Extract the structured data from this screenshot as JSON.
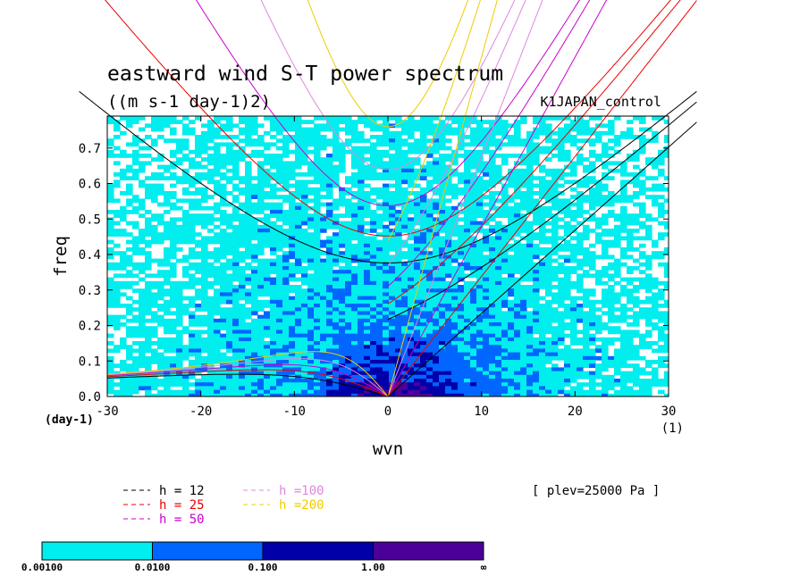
{
  "chart_data": {
    "type": "heatmap",
    "title": "eastward wind S-T power spectrum",
    "subtitle": "((m s-1 day-1)2)",
    "run_label": "K1JAPAN_control",
    "level_label": "[ plev=25000 Pa ]",
    "xlabel": "wvn",
    "ylabel": "freq",
    "x_unit_label": "(1)",
    "y_unit_label": "(day-1)",
    "xlim": [
      -30,
      30
    ],
    "ylim": [
      0,
      0.79
    ],
    "x_ticks": [
      -30,
      -20,
      -10,
      0,
      10,
      20,
      30
    ],
    "y_ticks": [
      0.0,
      0.1,
      0.2,
      0.3,
      0.4,
      0.5,
      0.6,
      0.7
    ],
    "color_levels": {
      "labels": [
        "0.00100",
        "0.0100",
        "0.100",
        "1.00",
        "∞"
      ],
      "colors": [
        "#00eeee",
        "#0066ff",
        "#0000aa",
        "#4d0099"
      ]
    },
    "legend": [
      {
        "label": "h = 12",
        "color": "#000000"
      },
      {
        "label": "h = 25",
        "color": "#ee0000"
      },
      {
        "label": "h = 50",
        "color": "#cc00cc"
      },
      {
        "label": "h =100",
        "color": "#dd88dd"
      },
      {
        "label": "h =200",
        "color": "#eecc00"
      }
    ]
  }
}
